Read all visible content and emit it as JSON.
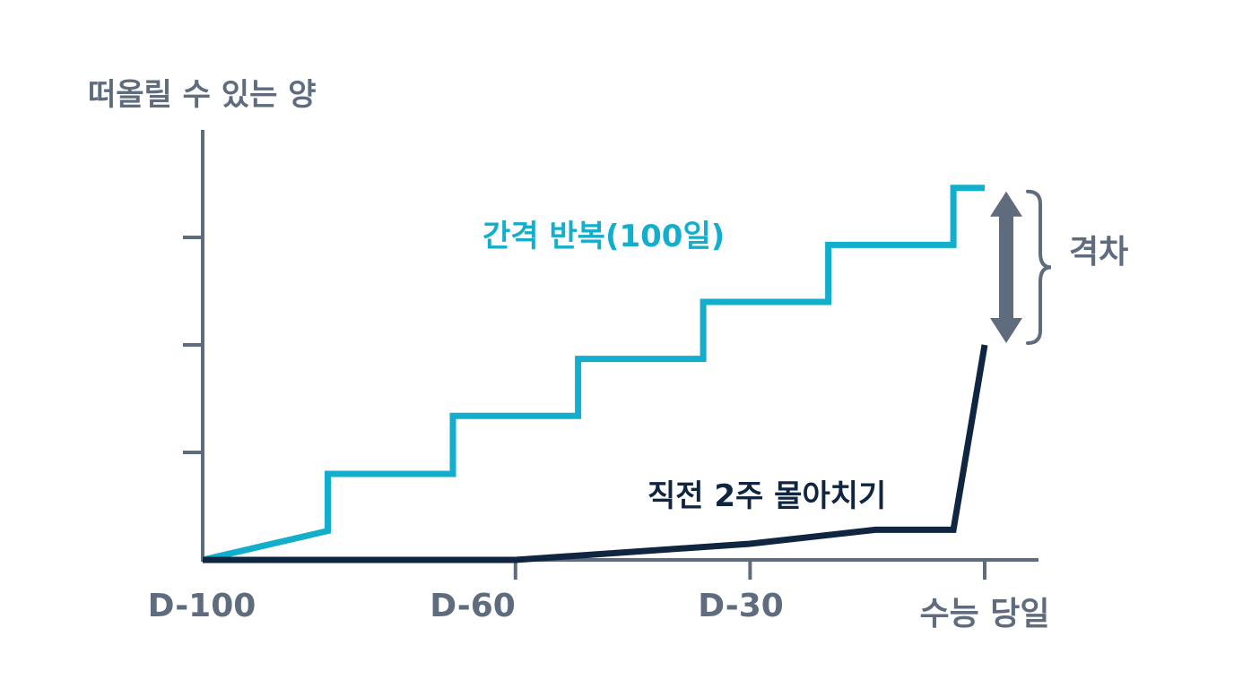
{
  "chart_data": {
    "type": "line",
    "ylabel": "떠올릴 수 있는 양",
    "xlabel": "",
    "x_ticks": [
      {
        "label": "D-100",
        "day": 100
      },
      {
        "label": "D-60",
        "day": 60
      },
      {
        "label": "D-30",
        "day": 30
      },
      {
        "label": "수능 당일",
        "day": 0
      }
    ],
    "xlim": [
      100,
      0
    ],
    "ylim": [
      0,
      4
    ],
    "y_ticks": [
      1,
      2,
      3
    ],
    "series": [
      {
        "name": "간격 반복(100일)",
        "color": "#12aecb",
        "step": true,
        "points": [
          [
            100,
            0.0
          ],
          [
            84,
            0.27
          ],
          [
            84,
            0.8
          ],
          [
            68,
            0.8
          ],
          [
            68,
            1.34
          ],
          [
            52,
            1.34
          ],
          [
            52,
            1.87
          ],
          [
            36,
            1.87
          ],
          [
            36,
            2.4
          ],
          [
            20,
            2.4
          ],
          [
            20,
            2.93
          ],
          [
            4,
            2.93
          ],
          [
            4,
            3.46
          ],
          [
            0,
            3.46
          ]
        ]
      },
      {
        "name": "직전 2주 몰아치기",
        "color": "#0f2540",
        "step": false,
        "points": [
          [
            100,
            0.0
          ],
          [
            60,
            0.0
          ],
          [
            30,
            0.15
          ],
          [
            14,
            0.28
          ],
          [
            4,
            0.28
          ],
          [
            0,
            2.0
          ]
        ]
      }
    ],
    "annotation": {
      "label": "격차",
      "from": 2.0,
      "to": 3.46,
      "at": 0
    }
  }
}
